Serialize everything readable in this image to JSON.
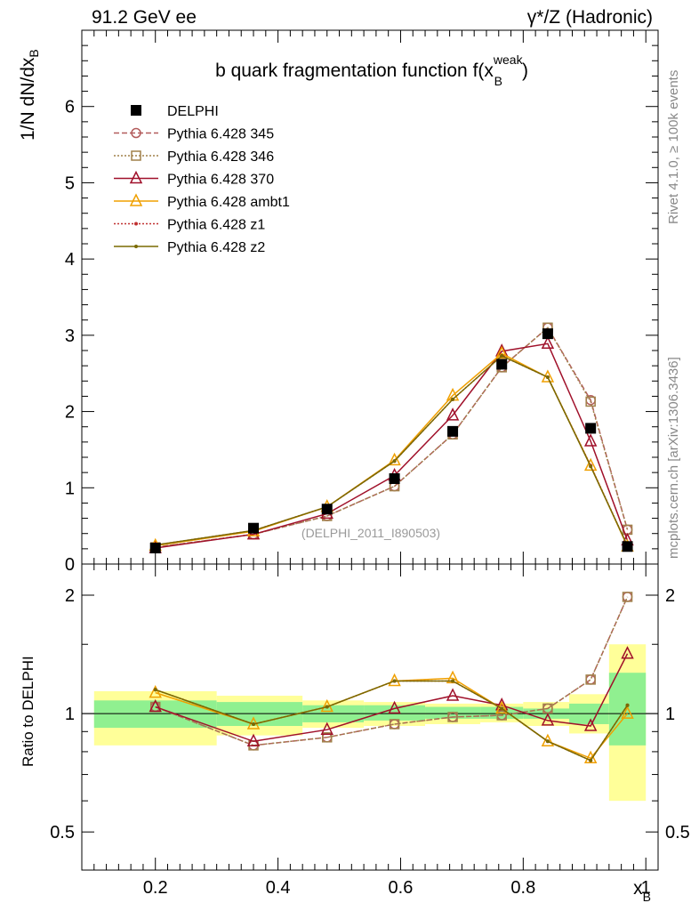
{
  "header": {
    "left": "91.2 GeV ee",
    "right": "γ*/Z (Hadronic)"
  },
  "side_labels": {
    "rivet": "Rivet 4.1.0, ≥ 100k events",
    "mcplots": "mcplots.cern.ch [arXiv:1306.3436]"
  },
  "chart_data": [
    {
      "panel": "main",
      "type": "line",
      "title": "b quark fragmentation function f(x_B^weak)",
      "title_main": "b quark fragmentation function f(x",
      "title_sup": "weak",
      "title_sub": "B",
      "title_close": ")",
      "ylabel": "1/N  dN/dx",
      "ylabel_sub": "B",
      "ylim": [
        0,
        7
      ],
      "xlim": [
        0.08,
        1.02
      ],
      "y_ticks": [
        "0",
        "1",
        "2",
        "3",
        "4",
        "5",
        "6"
      ],
      "watermark": "(DELPHI_2011_I890503)",
      "x": [
        0.2,
        0.36,
        0.48,
        0.59,
        0.685,
        0.765,
        0.84,
        0.91,
        0.97
      ],
      "series": [
        {
          "name": "DELPHI",
          "color": "#000000",
          "marker": "filled-square",
          "dash": "none",
          "values": [
            0.21,
            0.47,
            0.72,
            1.12,
            1.74,
            2.62,
            3.02,
            1.78,
            0.23
          ]
        },
        {
          "name": "Pythia 6.428 345",
          "color": "#b35c5c",
          "marker": "open-circle",
          "dash": "6,3",
          "values": [
            0.22,
            0.39,
            0.63,
            1.02,
            1.7,
            2.58,
            3.1,
            2.15,
            0.45
          ]
        },
        {
          "name": "Pythia 6.428 346",
          "color": "#a0804a",
          "marker": "open-square",
          "dash": "2,2",
          "values": [
            0.22,
            0.39,
            0.63,
            1.02,
            1.7,
            2.58,
            3.1,
            2.13,
            0.45
          ]
        },
        {
          "name": "Pythia 6.428 370",
          "color": "#a0102a",
          "marker": "open-triangle",
          "dash": "none",
          "values": [
            0.21,
            0.39,
            0.66,
            1.16,
            1.95,
            2.79,
            2.89,
            1.61,
            0.31
          ]
        },
        {
          "name": "Pythia 6.428 ambt1",
          "color": "#f0a000",
          "marker": "open-triangle",
          "dash": "none",
          "values": [
            0.24,
            0.43,
            0.75,
            1.36,
            2.21,
            2.76,
            2.45,
            1.29,
            0.23
          ]
        },
        {
          "name": "Pythia 6.428 z1",
          "color": "#c03030",
          "marker": "dot",
          "dash": "2,2",
          "values": [
            0.25,
            0.44,
            0.75,
            1.35,
            2.16,
            2.73,
            2.45,
            1.29,
            0.24
          ]
        },
        {
          "name": "Pythia 6.428 z2",
          "color": "#7a6a00",
          "marker": "dot",
          "dash": "none",
          "values": [
            0.25,
            0.44,
            0.75,
            1.35,
            2.16,
            2.73,
            2.45,
            1.28,
            0.24
          ]
        }
      ]
    },
    {
      "panel": "ratio",
      "type": "line",
      "ylabel": "Ratio to DELPHI",
      "xlabel": "x",
      "xlabel_sub": "B",
      "ylim": [
        0.4,
        2.4
      ],
      "xlim": [
        0.08,
        1.02
      ],
      "y_ticks": [
        "0.5",
        "1",
        "2"
      ],
      "x_ticks": [
        "0.2",
        "0.4",
        "0.6",
        "0.8",
        "1"
      ],
      "bands": [
        {
          "x0": 0.1,
          "x1": 0.3,
          "inner": [
            0.92,
            1.08
          ],
          "outer": [
            0.83,
            1.14
          ]
        },
        {
          "x0": 0.3,
          "x1": 0.44,
          "inner": [
            0.93,
            1.07
          ],
          "outer": [
            0.88,
            1.11
          ]
        },
        {
          "x0": 0.44,
          "x1": 0.54,
          "inner": [
            0.95,
            1.05
          ],
          "outer": [
            0.92,
            1.08
          ]
        },
        {
          "x0": 0.54,
          "x1": 0.64,
          "inner": [
            0.96,
            1.05
          ],
          "outer": [
            0.93,
            1.07
          ]
        },
        {
          "x0": 0.64,
          "x1": 0.73,
          "inner": [
            0.97,
            1.04
          ],
          "outer": [
            0.94,
            1.06
          ]
        },
        {
          "x0": 0.73,
          "x1": 0.8,
          "inner": [
            0.97,
            1.04
          ],
          "outer": [
            0.95,
            1.06
          ]
        },
        {
          "x0": 0.8,
          "x1": 0.875,
          "inner": [
            0.97,
            1.03
          ],
          "outer": [
            0.93,
            1.07
          ]
        },
        {
          "x0": 0.875,
          "x1": 0.94,
          "inner": [
            0.94,
            1.06
          ],
          "outer": [
            0.89,
            1.12
          ]
        },
        {
          "x0": 0.94,
          "x1": 1.0,
          "inner": [
            0.83,
            1.27
          ],
          "outer": [
            0.6,
            1.5
          ]
        }
      ],
      "x": [
        0.2,
        0.36,
        0.48,
        0.59,
        0.685,
        0.765,
        0.84,
        0.91,
        0.97
      ],
      "series": [
        {
          "name": "Pythia 6.428 345",
          "values": [
            1.04,
            0.83,
            0.87,
            0.94,
            0.98,
            0.99,
            1.03,
            1.22,
            1.98
          ]
        },
        {
          "name": "Pythia 6.428 346",
          "values": [
            1.04,
            0.83,
            0.87,
            0.94,
            0.98,
            0.99,
            1.03,
            1.22,
            1.98
          ]
        },
        {
          "name": "Pythia 6.428 370",
          "values": [
            1.04,
            0.85,
            0.91,
            1.03,
            1.11,
            1.05,
            0.96,
            0.93,
            1.42
          ]
        },
        {
          "name": "Pythia 6.428 ambt1",
          "values": [
            1.13,
            0.94,
            1.04,
            1.21,
            1.23,
            1.03,
            0.85,
            0.77,
            1.0
          ]
        },
        {
          "name": "Pythia 6.428 z1",
          "values": [
            1.15,
            0.94,
            1.04,
            1.21,
            1.21,
            1.03,
            0.85,
            0.76,
            1.05
          ]
        },
        {
          "name": "Pythia 6.428 z2",
          "values": [
            1.15,
            0.94,
            1.04,
            1.21,
            1.21,
            1.03,
            0.85,
            0.76,
            1.05
          ]
        }
      ]
    }
  ]
}
